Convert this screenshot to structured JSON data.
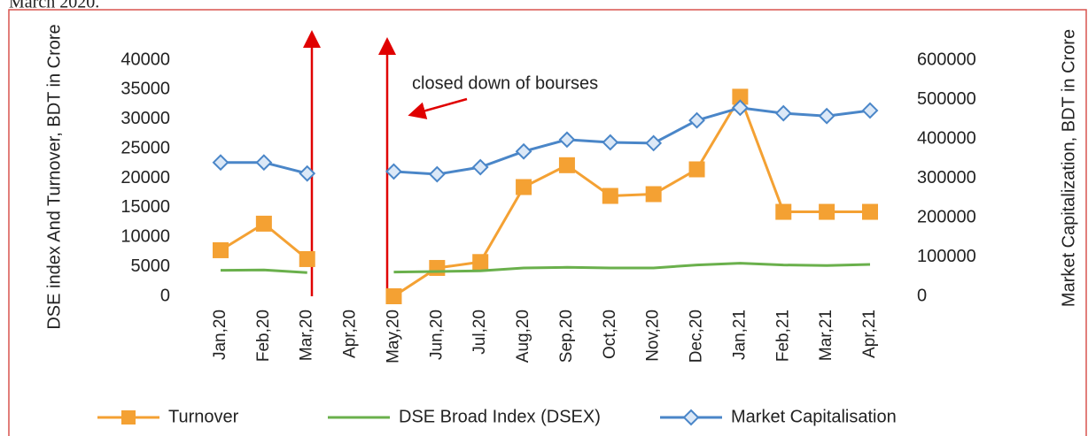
{
  "caption": "March 2020.",
  "chart_data": {
    "type": "line",
    "ylabel": "DSE index And Turnover, BDT in Crore",
    "y2label": "Market Capitalization, BDT in Crore",
    "annotation": "closed down of bourses",
    "categories": [
      "Jan,20",
      "Feb,20",
      "Mar,20",
      "Apr,20",
      "May,20",
      "Jun,20",
      "Jul,20",
      "Aug,20",
      "Sep,20",
      "Oct,20",
      "Nov,20",
      "Dec,20",
      "Jan,21",
      "Feb,21",
      "Mar,21",
      "Apr,21"
    ],
    "ylim": [
      0,
      40000
    ],
    "yticks": [
      0,
      5000,
      10000,
      15000,
      20000,
      25000,
      30000,
      35000,
      40000
    ],
    "y2lim": [
      0,
      600000
    ],
    "y2ticks": [
      0,
      100000,
      200000,
      300000,
      400000,
      500000,
      600000
    ],
    "series": [
      {
        "name": "Turnover",
        "color": "#f4a133",
        "marker": "square",
        "values": [
          7800,
          12300,
          6300,
          null,
          0,
          4800,
          5800,
          18500,
          22200,
          17000,
          17300,
          21500,
          33800,
          14300,
          14300,
          14300
        ]
      },
      {
        "name": "DSE Broad Index (DSEX)",
        "color": "#6ab04c",
        "marker": "none",
        "values": [
          4400,
          4450,
          4000,
          null,
          4100,
          4200,
          4300,
          4800,
          4900,
          4800,
          4800,
          5300,
          5600,
          5300,
          5200,
          5400
        ]
      },
      {
        "name": "Market  Capitalisation",
        "color": "#4a86c8",
        "marker": "diamond",
        "axis": "y2",
        "values": [
          340000,
          340000,
          312000,
          null,
          317000,
          310000,
          328000,
          368000,
          398000,
          391000,
          389000,
          447000,
          479000,
          465000,
          458000,
          472000
        ]
      }
    ]
  }
}
